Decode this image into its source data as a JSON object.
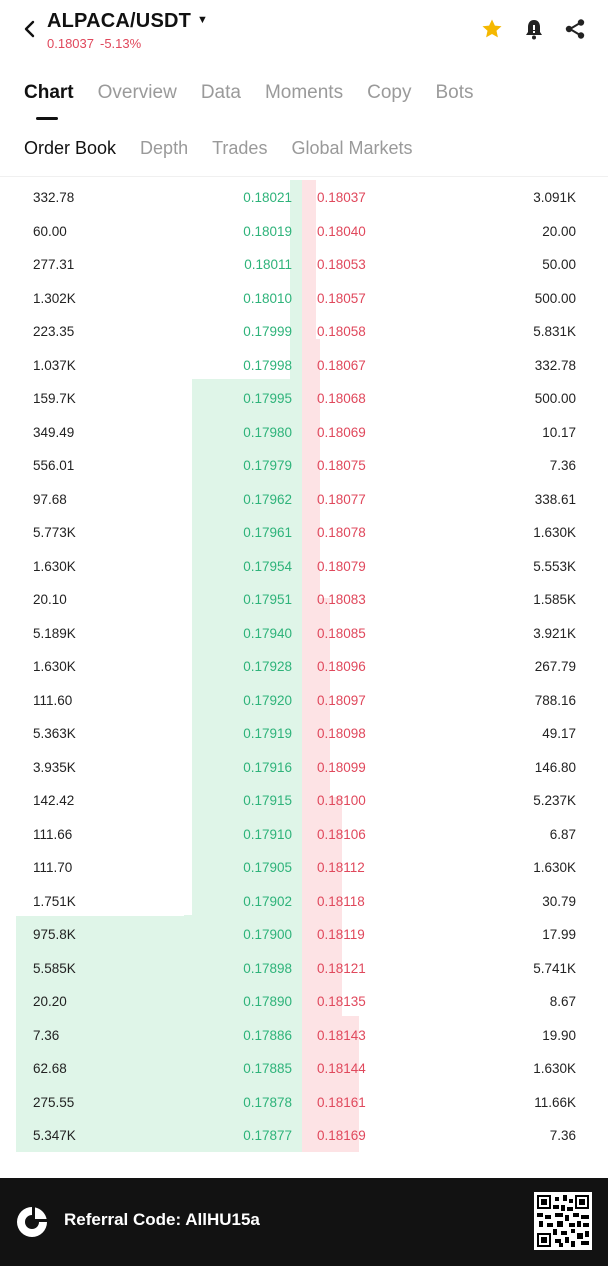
{
  "header": {
    "pair": "ALPACA/USDT",
    "price": "0.18037",
    "change": "-5.13%",
    "icons": [
      "back-chevron-icon",
      "star-icon",
      "bell-icon",
      "share-icon"
    ],
    "star_color": "#f5b800"
  },
  "main_tabs": [
    "Chart",
    "Overview",
    "Data",
    "Moments",
    "Copy",
    "Bots"
  ],
  "sub_tabs": [
    "Order Book",
    "Depth",
    "Trades",
    "Global Markets"
  ],
  "colors": {
    "bid": "#2eb37a",
    "ask": "#e0485c",
    "bid_depth": "#dff5e8",
    "ask_depth": "#fde3e5"
  },
  "order_book": [
    {
      "bid_size": "332.78",
      "bid_price": "0.18021",
      "ask_price": "0.18037",
      "ask_size": "3.091K"
    },
    {
      "bid_size": "60.00",
      "bid_price": "0.18019",
      "ask_price": "0.18040",
      "ask_size": "20.00"
    },
    {
      "bid_size": "277.31",
      "bid_price": "0.18011",
      "ask_price": "0.18053",
      "ask_size": "50.00"
    },
    {
      "bid_size": "1.302K",
      "bid_price": "0.18010",
      "ask_price": "0.18057",
      "ask_size": "500.00"
    },
    {
      "bid_size": "223.35",
      "bid_price": "0.17999",
      "ask_price": "0.18058",
      "ask_size": "5.831K"
    },
    {
      "bid_size": "1.037K",
      "bid_price": "0.17998",
      "ask_price": "0.18067",
      "ask_size": "332.78"
    },
    {
      "bid_size": "159.7K",
      "bid_price": "0.17995",
      "ask_price": "0.18068",
      "ask_size": "500.00"
    },
    {
      "bid_size": "349.49",
      "bid_price": "0.17980",
      "ask_price": "0.18069",
      "ask_size": "10.17"
    },
    {
      "bid_size": "556.01",
      "bid_price": "0.17979",
      "ask_price": "0.18075",
      "ask_size": "7.36"
    },
    {
      "bid_size": "97.68",
      "bid_price": "0.17962",
      "ask_price": "0.18077",
      "ask_size": "338.61"
    },
    {
      "bid_size": "5.773K",
      "bid_price": "0.17961",
      "ask_price": "0.18078",
      "ask_size": "1.630K"
    },
    {
      "bid_size": "1.630K",
      "bid_price": "0.17954",
      "ask_price": "0.18079",
      "ask_size": "5.553K"
    },
    {
      "bid_size": "20.10",
      "bid_price": "0.17951",
      "ask_price": "0.18083",
      "ask_size": "1.585K"
    },
    {
      "bid_size": "5.189K",
      "bid_price": "0.17940",
      "ask_price": "0.18085",
      "ask_size": "3.921K"
    },
    {
      "bid_size": "1.630K",
      "bid_price": "0.17928",
      "ask_price": "0.18096",
      "ask_size": "267.79"
    },
    {
      "bid_size": "111.60",
      "bid_price": "0.17920",
      "ask_price": "0.18097",
      "ask_size": "788.16"
    },
    {
      "bid_size": "5.363K",
      "bid_price": "0.17919",
      "ask_price": "0.18098",
      "ask_size": "49.17"
    },
    {
      "bid_size": "3.935K",
      "bid_price": "0.17916",
      "ask_price": "0.18099",
      "ask_size": "146.80"
    },
    {
      "bid_size": "142.42",
      "bid_price": "0.17915",
      "ask_price": "0.18100",
      "ask_size": "5.237K"
    },
    {
      "bid_size": "111.66",
      "bid_price": "0.17910",
      "ask_price": "0.18106",
      "ask_size": "6.87"
    },
    {
      "bid_size": "111.70",
      "bid_price": "0.17905",
      "ask_price": "0.18112",
      "ask_size": "1.630K"
    },
    {
      "bid_size": "1.751K",
      "bid_price": "0.17902",
      "ask_price": "0.18118",
      "ask_size": "30.79"
    },
    {
      "bid_size": "975.8K",
      "bid_price": "0.17900",
      "ask_price": "0.18119",
      "ask_size": "17.99"
    },
    {
      "bid_size": "5.585K",
      "bid_price": "0.17898",
      "ask_price": "0.18121",
      "ask_size": "5.741K"
    },
    {
      "bid_size": "20.20",
      "bid_price": "0.17890",
      "ask_price": "0.18135",
      "ask_size": "8.67"
    },
    {
      "bid_size": "7.36",
      "bid_price": "0.17886",
      "ask_price": "0.18143",
      "ask_size": "19.90"
    },
    {
      "bid_size": "62.68",
      "bid_price": "0.17885",
      "ask_price": "0.18144",
      "ask_size": "1.630K"
    },
    {
      "bid_size": "275.55",
      "bid_price": "0.17878",
      "ask_price": "0.18161",
      "ask_size": "11.66K"
    },
    {
      "bid_size": "5.347K",
      "bid_price": "0.17877",
      "ask_price": "0.18169",
      "ask_size": "7.36"
    }
  ],
  "footer": {
    "referral_text": "Referral Code: AllHU15a",
    "logo_icon": "exchange-logo-icon",
    "qr_icon": "qr-code-icon"
  }
}
